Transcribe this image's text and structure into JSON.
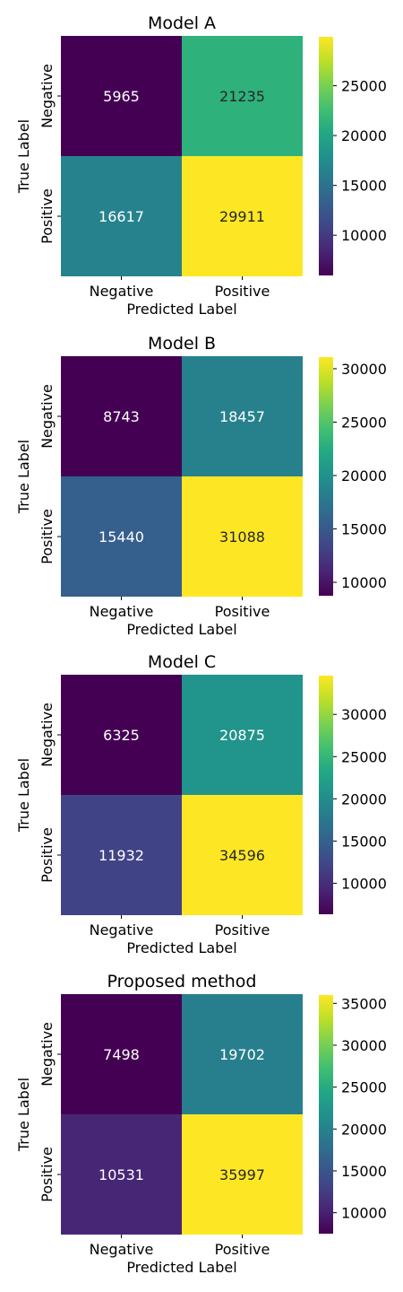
{
  "chart_data": [
    {
      "type": "heatmap",
      "title": "Model A",
      "xlabel": "Predicted Label",
      "ylabel": "True Label",
      "x_categories": [
        "Negative",
        "Positive"
      ],
      "y_categories": [
        "Negative",
        "Positive"
      ],
      "values": [
        [
          5965,
          21235
        ],
        [
          16617,
          29911
        ]
      ],
      "colorbar": {
        "range": [
          5965,
          29911
        ],
        "ticks": [
          "10000",
          "15000",
          "20000",
          "25000"
        ]
      },
      "colormap": "viridis"
    },
    {
      "type": "heatmap",
      "title": "Model B",
      "xlabel": "Predicted Label",
      "ylabel": "True Label",
      "x_categories": [
        "Negative",
        "Positive"
      ],
      "y_categories": [
        "Negative",
        "Positive"
      ],
      "values": [
        [
          8743,
          18457
        ],
        [
          15440,
          31088
        ]
      ],
      "colorbar": {
        "range": [
          8743,
          31088
        ],
        "ticks": [
          "10000",
          "15000",
          "20000",
          "25000",
          "30000"
        ]
      },
      "colormap": "viridis"
    },
    {
      "type": "heatmap",
      "title": "Model C",
      "xlabel": "Predicted Label",
      "ylabel": "True Label",
      "x_categories": [
        "Negative",
        "Positive"
      ],
      "y_categories": [
        "Negative",
        "Positive"
      ],
      "values": [
        [
          6325,
          20875
        ],
        [
          11932,
          34596
        ]
      ],
      "colorbar": {
        "range": [
          6325,
          34596
        ],
        "ticks": [
          "10000",
          "15000",
          "20000",
          "25000",
          "30000"
        ]
      },
      "colormap": "viridis"
    },
    {
      "type": "heatmap",
      "title": "Proposed method",
      "xlabel": "Predicted Label",
      "ylabel": "True Label",
      "x_categories": [
        "Negative",
        "Positive"
      ],
      "y_categories": [
        "Negative",
        "Positive"
      ],
      "values": [
        [
          7498,
          19702
        ],
        [
          10531,
          35997
        ]
      ],
      "colorbar": {
        "range": [
          7498,
          35997
        ],
        "ticks": [
          "10000",
          "15000",
          "20000",
          "25000",
          "30000",
          "35000"
        ]
      },
      "colormap": "viridis"
    }
  ]
}
